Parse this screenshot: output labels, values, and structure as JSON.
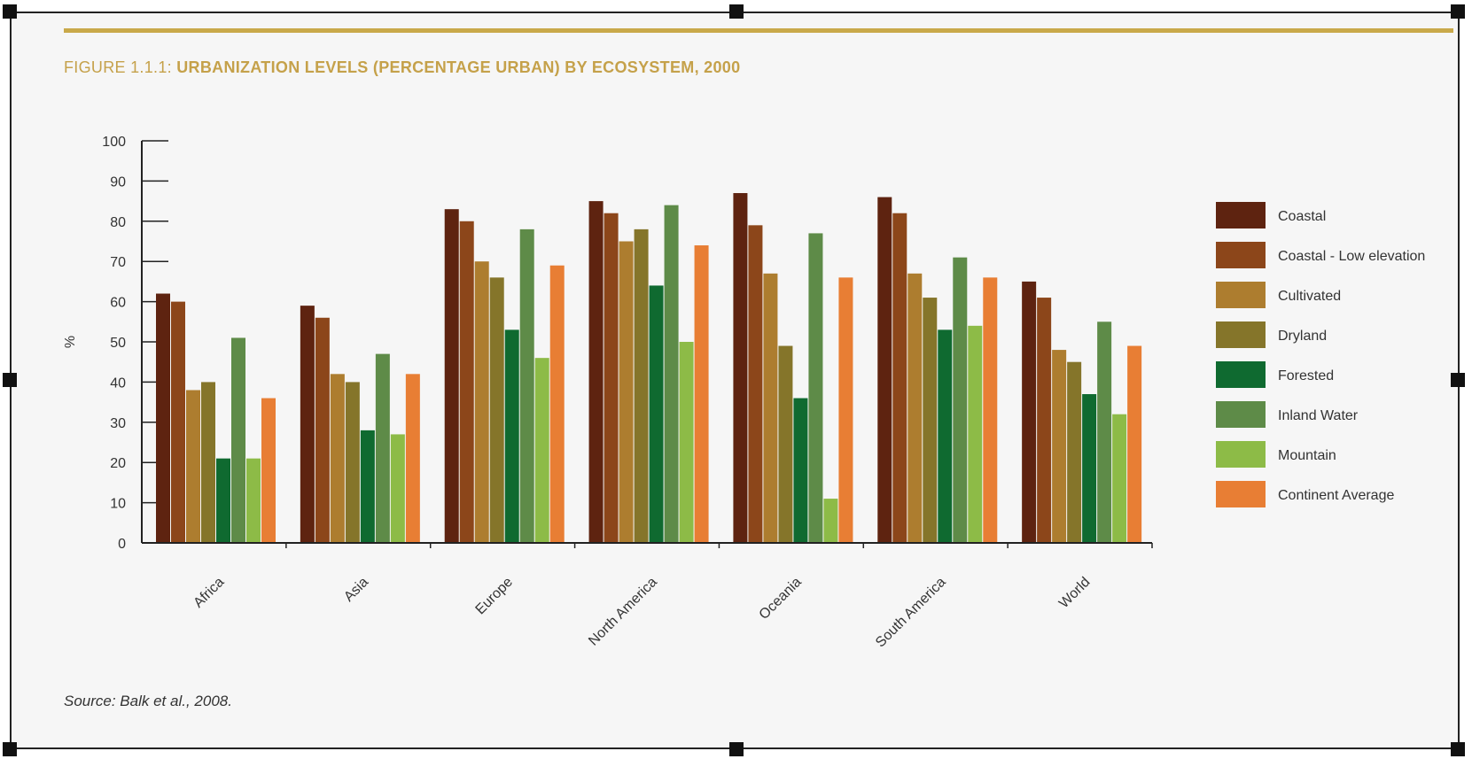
{
  "figure": {
    "title_number": "FIGURE 1.1.1:",
    "title_text": "URBANIZATION LEVELS (PERCENTAGE URBAN) BY ECOSYSTEM, 2000",
    "source": "Source: Balk et al., 2008.",
    "accent_color": "#c9a94a"
  },
  "chart_data": {
    "type": "bar",
    "title": "URBANIZATION LEVELS (PERCENTAGE URBAN) BY ECOSYSTEM, 2000",
    "xlabel": "",
    "ylabel": "%",
    "ylim": [
      0,
      100
    ],
    "yticks": [
      0,
      10,
      20,
      30,
      40,
      50,
      60,
      70,
      80,
      90,
      100
    ],
    "grid": false,
    "legend_position": "right",
    "categories": [
      "Africa",
      "Asia",
      "Europe",
      "North America",
      "Oceania",
      "South America",
      "World"
    ],
    "series": [
      {
        "name": "Coastal",
        "color": "#5e2310",
        "values": [
          62,
          59,
          83,
          85,
          87,
          86,
          65
        ]
      },
      {
        "name": "Coastal - Low elevation",
        "color": "#8c461a",
        "values": [
          60,
          56,
          80,
          82,
          79,
          82,
          61
        ]
      },
      {
        "name": "Cultivated",
        "color": "#ad7d2f",
        "values": [
          38,
          42,
          70,
          75,
          67,
          67,
          48
        ]
      },
      {
        "name": "Dryland",
        "color": "#85752a",
        "values": [
          40,
          40,
          66,
          78,
          49,
          61,
          45
        ]
      },
      {
        "name": "Forested",
        "color": "#0f6a30",
        "values": [
          21,
          28,
          53,
          64,
          36,
          53,
          37
        ]
      },
      {
        "name": "Inland Water",
        "color": "#5e8b48",
        "values": [
          51,
          47,
          78,
          84,
          77,
          71,
          55
        ]
      },
      {
        "name": "Mountain",
        "color": "#8dbb47",
        "values": [
          21,
          27,
          46,
          50,
          11,
          54,
          32
        ]
      },
      {
        "name": "Continent Average",
        "color": "#e87e34",
        "values": [
          36,
          42,
          69,
          74,
          66,
          66,
          49
        ]
      }
    ]
  }
}
